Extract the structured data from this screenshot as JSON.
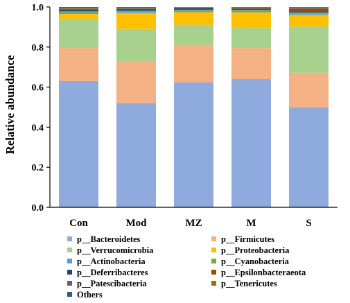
{
  "chart_data": {
    "type": "bar",
    "stacked": true,
    "categories": [
      "Con",
      "Mod",
      "MZ",
      "M",
      "S"
    ],
    "ylabel": "Relative abundance",
    "xlabel": "",
    "ylim": [
      0,
      1
    ],
    "yticks": [
      "0.0",
      "0.2",
      "0.4",
      "0.6",
      "0.8",
      "1.0"
    ],
    "grid": false,
    "legend_position": "bottom",
    "series": [
      {
        "name": "p__Bacteroidetes",
        "color": "#8faadc",
        "values": [
          0.63,
          0.52,
          0.623,
          0.64,
          0.498
        ]
      },
      {
        "name": "p__Firmicutes",
        "color": "#f4b183",
        "values": [
          0.165,
          0.21,
          0.188,
          0.155,
          0.174
        ]
      },
      {
        "name": "p__Verrucomicrobia",
        "color": "#a9d18e",
        "values": [
          0.145,
          0.16,
          0.1,
          0.1,
          0.23
        ]
      },
      {
        "name": "p__Proteobacteria",
        "color": "#ffc000",
        "values": [
          0.025,
          0.08,
          0.063,
          0.078,
          0.058
        ]
      },
      {
        "name": "p__Actinobacteria",
        "color": "#5b9bd5",
        "values": [
          0.007,
          0.007,
          0.008,
          0.007,
          0.008
        ]
      },
      {
        "name": "p__Cyanobacteria",
        "color": "#70ad47",
        "values": [
          0.006,
          0.004,
          0.004,
          0.005,
          0.004
        ]
      },
      {
        "name": "p__Deferribacteres",
        "color": "#264478",
        "values": [
          0.007,
          0.007,
          0.008,
          0.006,
          0.006
        ]
      },
      {
        "name": "p__Epsilonbacteraeota",
        "color": "#9e480e",
        "values": [
          0.003,
          0.002,
          0.002,
          0.003,
          0.012
        ]
      },
      {
        "name": "p__Patescibacteria",
        "color": "#636363",
        "values": [
          0.004,
          0.004,
          0.002,
          0.002,
          0.004
        ]
      },
      {
        "name": "p__Tenericutes",
        "color": "#997300",
        "values": [
          0.004,
          0.002,
          0.001,
          0.002,
          0.003
        ]
      },
      {
        "name": "Others",
        "color": "#255e91",
        "values": [
          0.004,
          0.004,
          0.001,
          0.002,
          0.003
        ]
      }
    ]
  }
}
